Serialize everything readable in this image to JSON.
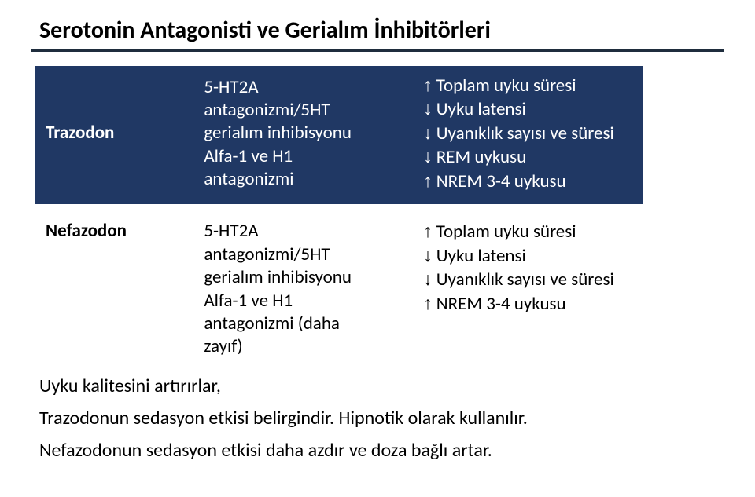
{
  "title": "Serotonin Antagonisti ve Gerialım İnhibitörleri",
  "header_bg": "#203864",
  "header_fg": "#ffffff",
  "up": "↑",
  "dn": "↓",
  "table1": {
    "drug": "Trazodon",
    "mech": "5-HT2A antagonizmi/5HT gerialım inhibisyonu\nAlfa-1 ve H1 antagonizmi",
    "eff1": "Toplam uyku süresi",
    "eff2": "Uyku latensi",
    "eff3": "Uyanıklık sayısı ve süresi",
    "eff4": "REM uykusu",
    "eff5": "NREM 3-4 uykusu"
  },
  "table2": {
    "drug": "Nefazodon",
    "mech": "5-HT2A antagonizmi/5HT gerialım inhibisyonu\nAlfa-1 ve H1 antagonizmi (daha zayıf)",
    "eff1": "Toplam uyku süresi",
    "eff2": "Uyku latensi",
    "eff3": "Uyanıklık sayısı ve süresi",
    "eff4": "NREM 3-4 uykusu"
  },
  "notes": {
    "n1": "Uyku kalitesini artırırlar,",
    "n2": "Trazodonun sedasyon etkisi belirgindir. Hipnotik olarak kullanılır.",
    "n3": "Nefazodonun sedasyon etkisi daha azdır ve doza bağlı artar."
  }
}
